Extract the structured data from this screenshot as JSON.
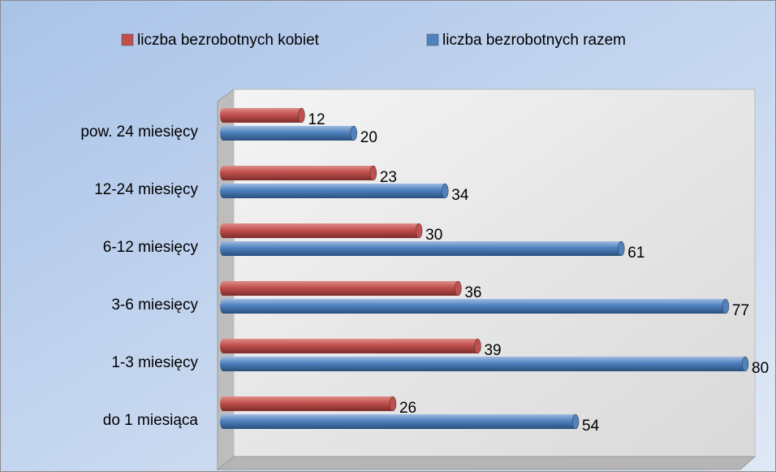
{
  "chart_data": {
    "type": "bar",
    "orientation": "horizontal",
    "categories": [
      "do 1 miesiąca",
      "1-3 miesięcy",
      "3-6 miesięcy",
      "6-12 miesięcy",
      "12-24 miesięcy",
      "pow. 24 miesięcy"
    ],
    "series": [
      {
        "name": "liczba bezrobotnych kobiet",
        "color": "#c0504d",
        "values": [
          26,
          39,
          36,
          30,
          23,
          12
        ]
      },
      {
        "name": "liczba bezrobotnych razem",
        "color": "#4f81bd",
        "values": [
          54,
          80,
          77,
          61,
          34,
          20
        ]
      }
    ],
    "xlim": [
      0,
      80
    ],
    "legend": "top"
  }
}
